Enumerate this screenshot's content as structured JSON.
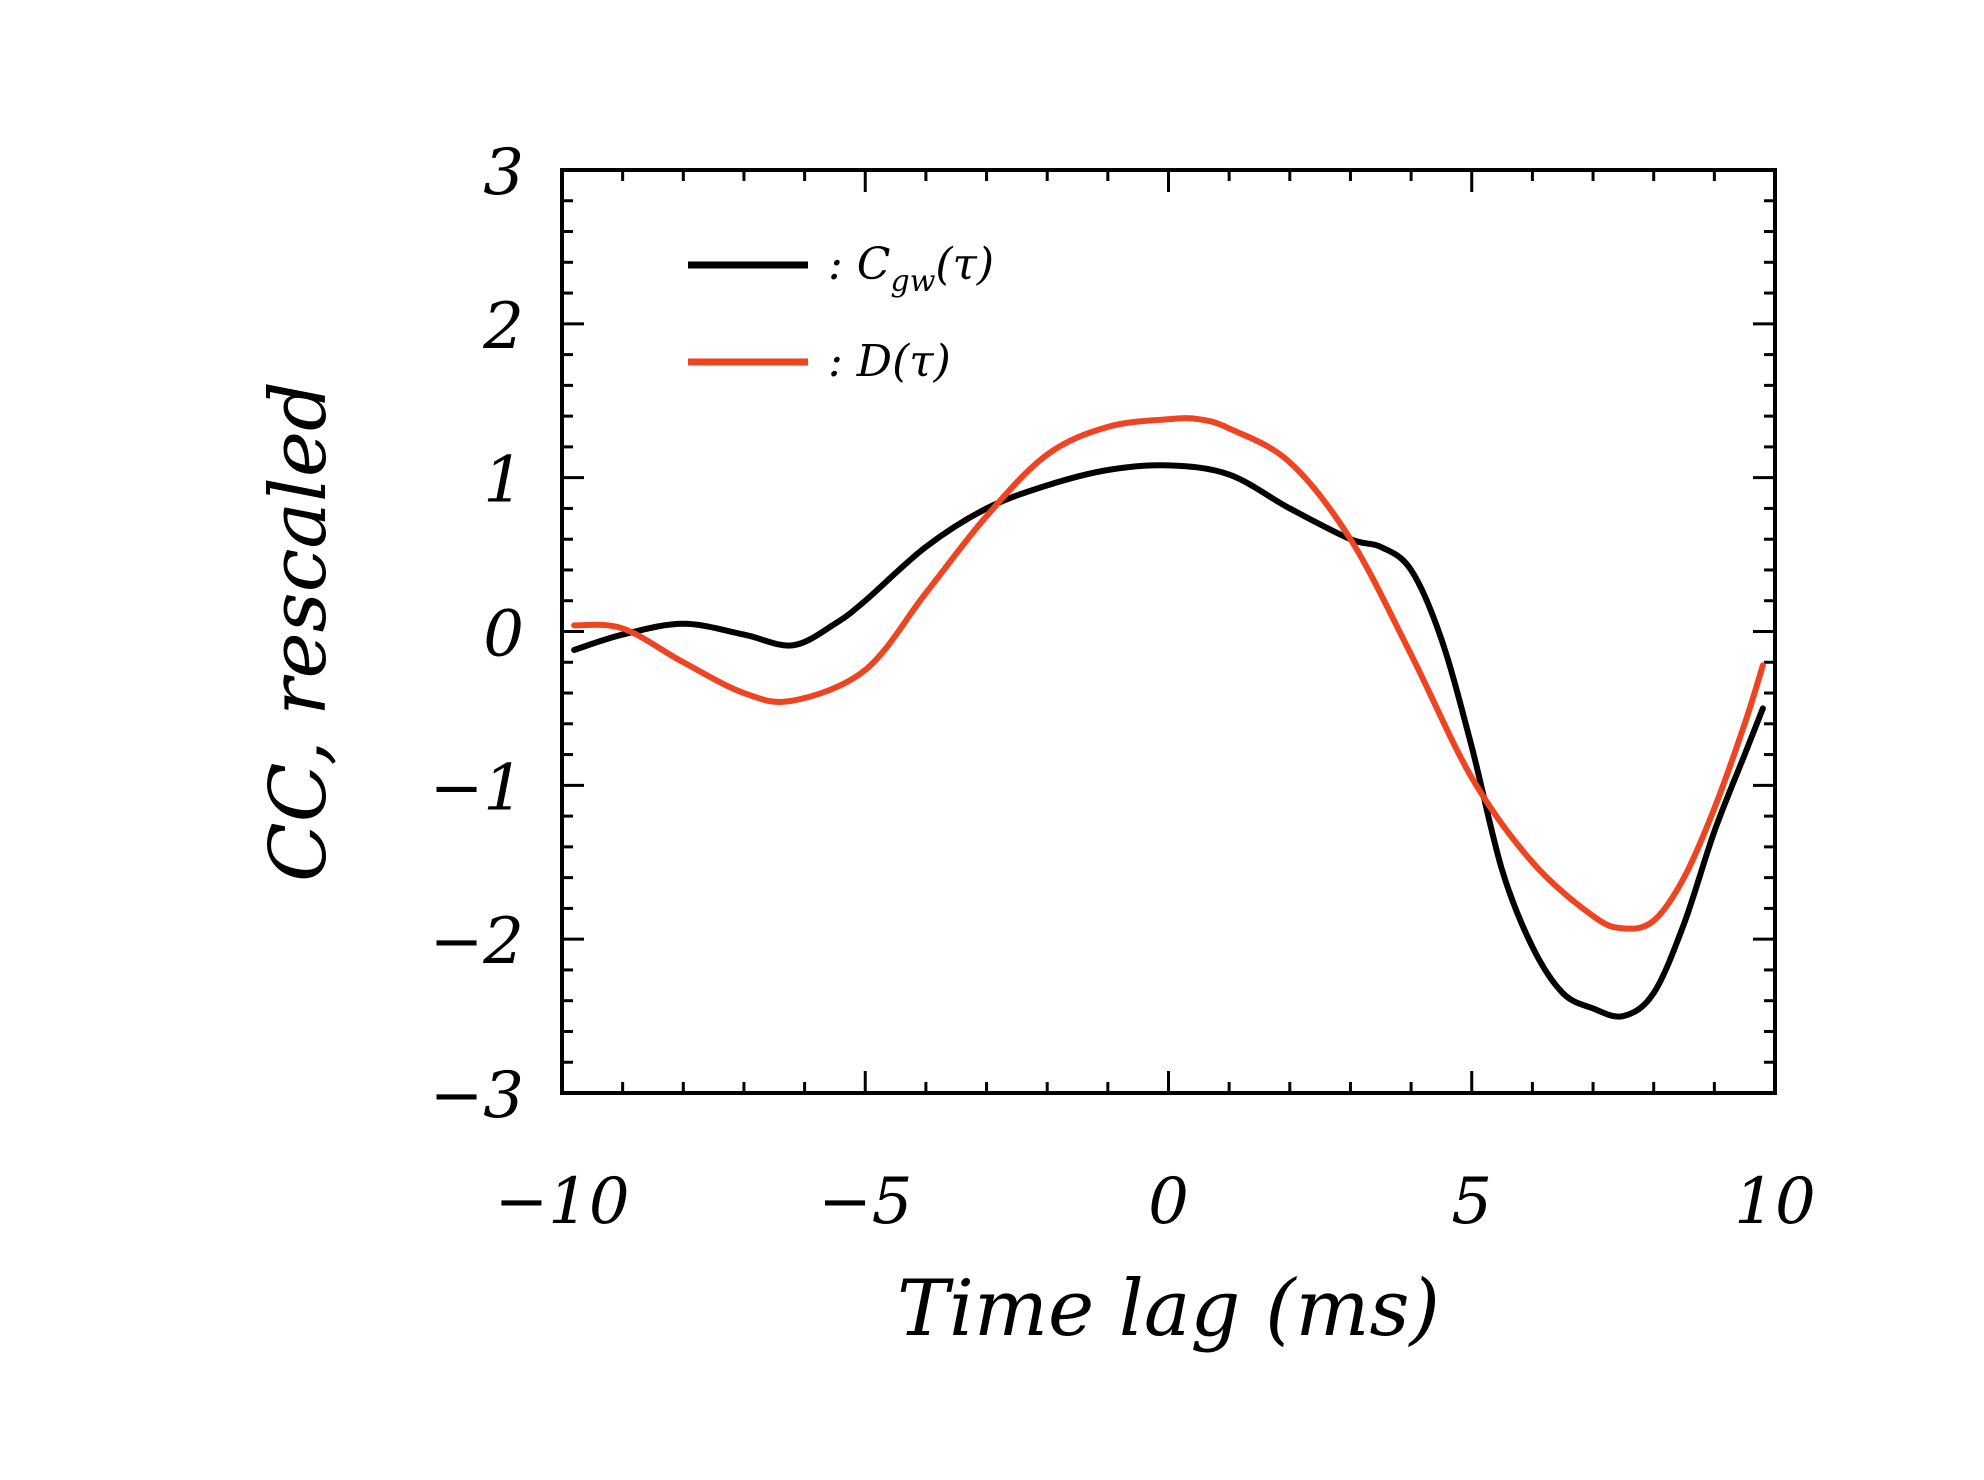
{
  "chart_data": {
    "type": "line",
    "title": "",
    "xlabel": "Time lag (ms)",
    "ylabel": "CC, rescaled",
    "xlim": [
      -10,
      10
    ],
    "ylim": [
      -3,
      3
    ],
    "xticks": [
      -10,
      -5,
      0,
      5,
      10
    ],
    "yticks": [
      -3,
      -2,
      -1,
      0,
      1,
      2,
      3
    ],
    "x_tick_labels": [
      "−10",
      "−5",
      "0",
      "5",
      "10"
    ],
    "y_tick_labels": [
      "−3",
      "−2",
      "−1",
      "0",
      "1",
      "2",
      "3"
    ],
    "grid": false,
    "legend_position": "top-left",
    "series": [
      {
        "name": "C_gw(τ)",
        "legend_label": ": C",
        "legend_sub": "gw",
        "legend_suffix": "(τ)",
        "color": "#000000",
        "x": [
          -9.8,
          -9.0,
          -8.0,
          -7.0,
          -6.2,
          -5.5,
          -5.0,
          -4.0,
          -3.0,
          -2.0,
          -1.0,
          0.0,
          1.0,
          2.0,
          3.0,
          3.5,
          4.0,
          4.5,
          5.0,
          5.5,
          6.0,
          6.5,
          7.0,
          7.5,
          8.0,
          8.5,
          9.0,
          9.5,
          9.8
        ],
        "values": [
          -0.12,
          -0.02,
          0.05,
          -0.02,
          -0.09,
          0.05,
          0.2,
          0.55,
          0.8,
          0.95,
          1.05,
          1.08,
          1.02,
          0.8,
          0.6,
          0.55,
          0.4,
          -0.05,
          -0.75,
          -1.55,
          -2.05,
          -2.35,
          -2.45,
          -2.5,
          -2.35,
          -1.9,
          -1.3,
          -0.8,
          -0.5
        ]
      },
      {
        "name": "D(τ)",
        "legend_label": ": D",
        "legend_sub": "",
        "legend_suffix": "(τ)",
        "color": "#ee4422",
        "x": [
          -9.8,
          -9.0,
          -8.0,
          -7.0,
          -6.2,
          -5.0,
          -4.0,
          -3.0,
          -2.0,
          -1.0,
          0.0,
          0.5,
          1.0,
          2.0,
          3.0,
          4.0,
          5.0,
          6.0,
          7.0,
          7.5,
          8.0,
          8.5,
          9.0,
          9.5,
          9.8
        ],
        "values": [
          0.04,
          0.02,
          -0.2,
          -0.4,
          -0.45,
          -0.25,
          0.25,
          0.75,
          1.15,
          1.33,
          1.38,
          1.38,
          1.32,
          1.1,
          0.6,
          -0.15,
          -0.95,
          -1.5,
          -1.85,
          -1.93,
          -1.88,
          -1.6,
          -1.15,
          -0.6,
          -0.22
        ]
      }
    ]
  }
}
